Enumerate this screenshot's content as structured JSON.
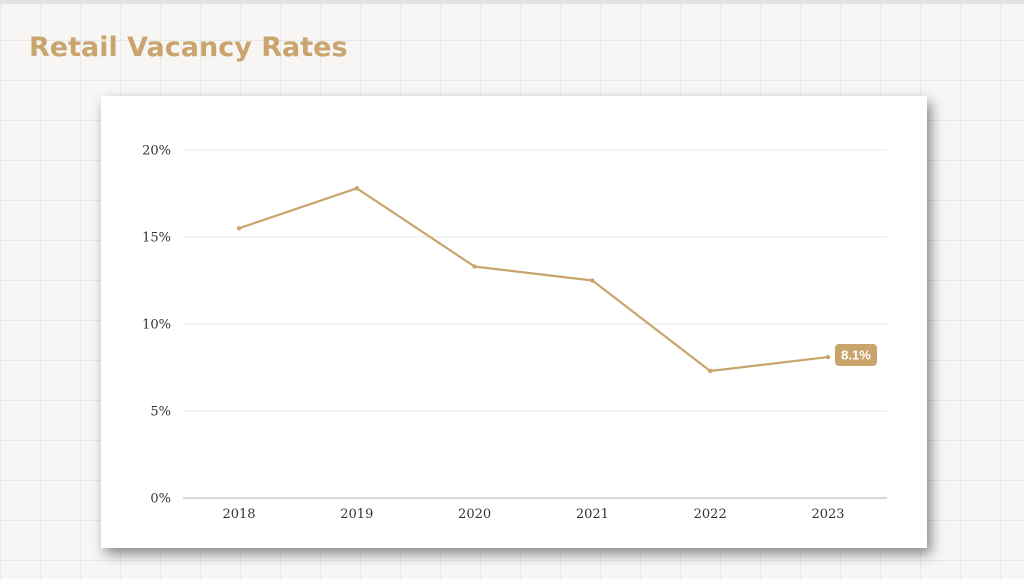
{
  "slide": {
    "title": "Retail Vacancy Rates"
  },
  "colors": {
    "accent": "#c9a56d",
    "gridline": "#e6e6e6",
    "axis": "#bfbfbf",
    "text": "#333333"
  },
  "chart_data": {
    "type": "line",
    "title": "",
    "xlabel": "",
    "ylabel": "",
    "categories": [
      "2018",
      "2019",
      "2020",
      "2021",
      "2022",
      "2023"
    ],
    "series": [
      {
        "values": [
          15.5,
          17.8,
          13.3,
          12.5,
          7.3,
          8.1
        ]
      }
    ],
    "ylim": [
      0,
      20
    ],
    "yticks": [
      0,
      5,
      10,
      15,
      20
    ],
    "ytick_labels": [
      "0%",
      "5%",
      "10%",
      "15%",
      "20%"
    ],
    "grid": true,
    "legend": "none",
    "annotations": [
      {
        "category": "2023",
        "text": "8.1%"
      }
    ]
  }
}
